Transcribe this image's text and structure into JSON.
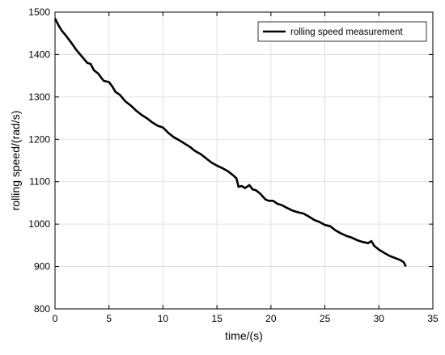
{
  "chart_data": {
    "type": "line",
    "title": "",
    "xlabel": "time/(s)",
    "ylabel": "rolling speed/(rad/s)",
    "xlim": [
      0,
      35
    ],
    "ylim": [
      800,
      1500
    ],
    "xticks": [
      0,
      5,
      10,
      15,
      20,
      25,
      30,
      35
    ],
    "yticks": [
      800,
      900,
      1000,
      1100,
      1200,
      1300,
      1400,
      1500
    ],
    "grid": true,
    "legend_position": "top-right",
    "series": [
      {
        "name": "rolling speed measurement",
        "color": "#000000",
        "x": [
          0,
          0.3,
          0.6,
          1.0,
          1.5,
          2.0,
          2.5,
          3.0,
          3.3,
          3.6,
          4.0,
          4.5,
          5.0,
          5.3,
          5.6,
          6.0,
          6.5,
          7.0,
          7.5,
          8.0,
          8.5,
          9.0,
          9.5,
          10.0,
          10.5,
          11.0,
          11.5,
          12.0,
          12.5,
          13.0,
          13.5,
          14.0,
          14.5,
          15.0,
          15.5,
          16.0,
          16.5,
          16.8,
          17.0,
          17.3,
          17.6,
          18.0,
          18.3,
          18.6,
          19.0,
          19.5,
          19.8,
          20.2,
          20.6,
          21.0,
          21.5,
          22.0,
          22.5,
          23.0,
          23.5,
          24.0,
          24.5,
          25.0,
          25.5,
          26.0,
          26.5,
          27.0,
          27.5,
          28.0,
          28.5,
          29.0,
          29.3,
          29.6,
          30.0,
          30.5,
          31.0,
          31.5,
          32.0,
          32.3,
          32.5
        ],
        "values": [
          1485,
          1470,
          1457,
          1445,
          1428,
          1410,
          1395,
          1380,
          1378,
          1363,
          1355,
          1338,
          1335,
          1325,
          1312,
          1305,
          1290,
          1280,
          1268,
          1258,
          1250,
          1240,
          1232,
          1228,
          1215,
          1205,
          1198,
          1190,
          1182,
          1172,
          1165,
          1155,
          1145,
          1138,
          1132,
          1125,
          1115,
          1108,
          1088,
          1090,
          1085,
          1092,
          1082,
          1080,
          1072,
          1058,
          1055,
          1055,
          1048,
          1045,
          1038,
          1032,
          1028,
          1025,
          1018,
          1010,
          1005,
          998,
          995,
          985,
          978,
          972,
          968,
          962,
          958,
          955,
          960,
          948,
          940,
          932,
          925,
          920,
          915,
          910,
          900
        ]
      }
    ]
  }
}
